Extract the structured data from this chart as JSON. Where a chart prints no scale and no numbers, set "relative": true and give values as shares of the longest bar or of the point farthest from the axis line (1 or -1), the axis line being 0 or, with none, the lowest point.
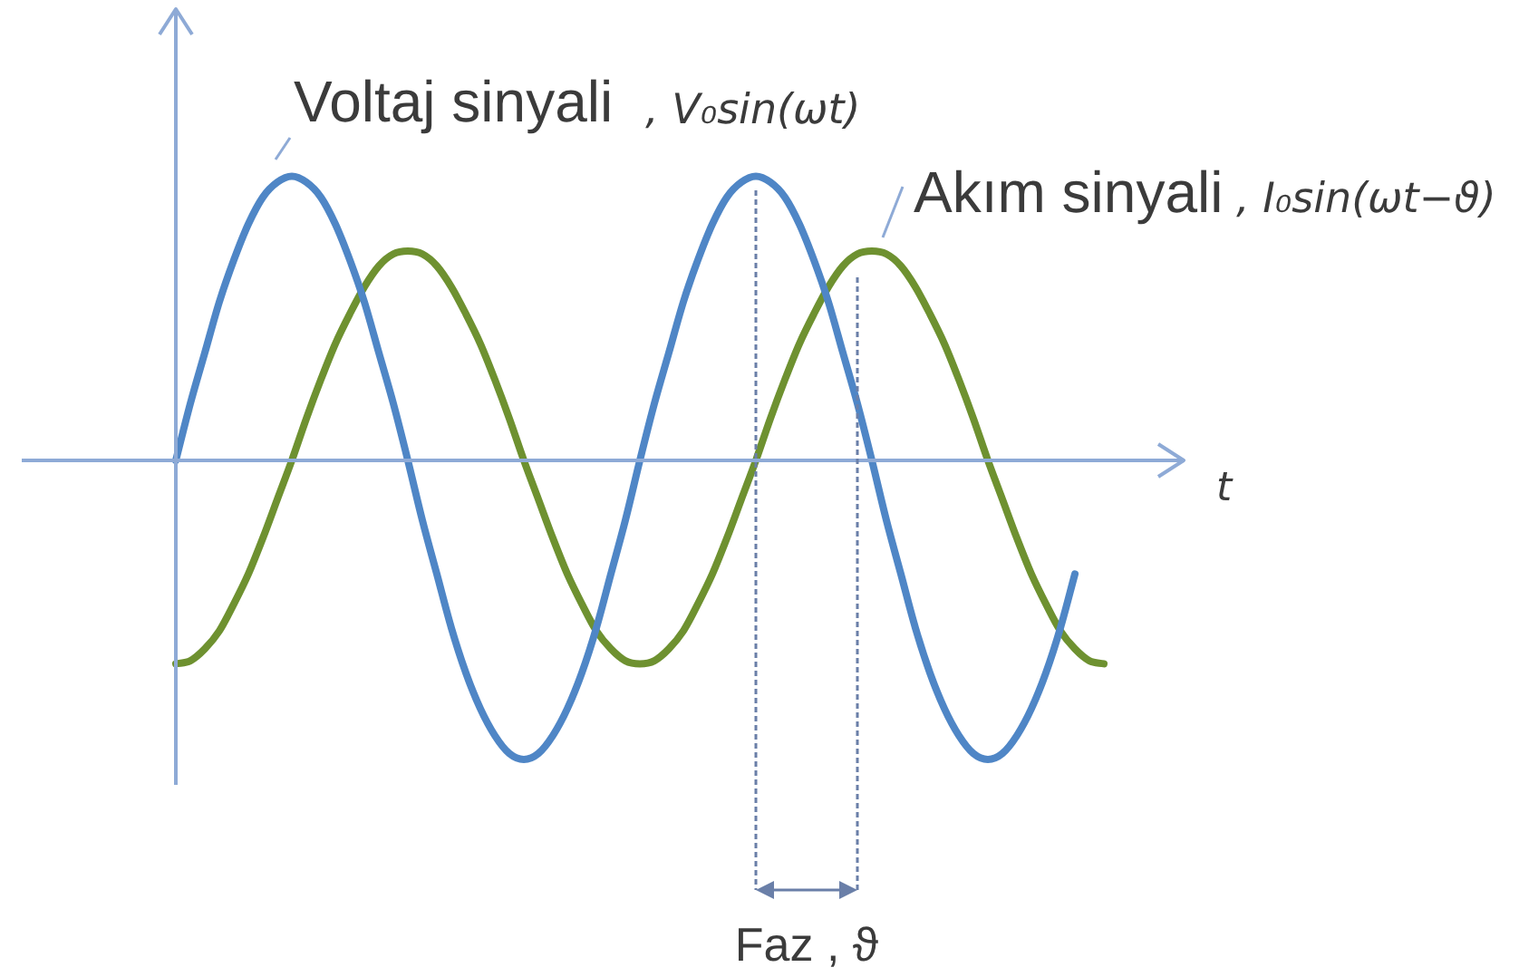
{
  "chart_data": {
    "type": "line",
    "relative": true,
    "xlabel": "t",
    "categories": [
      null,
      null,
      null,
      null,
      null,
      null,
      null,
      null,
      null,
      null,
      null,
      null,
      null,
      null,
      null,
      null,
      null,
      null,
      null,
      null,
      null,
      null,
      null,
      null,
      null,
      null,
      null,
      null,
      null,
      null,
      null,
      null,
      null,
      null,
      null,
      null,
      null,
      null,
      null,
      null,
      null,
      null,
      null,
      null,
      null,
      null,
      null,
      null,
      null,
      null,
      null,
      null,
      null,
      null,
      null,
      null,
      null,
      null,
      null,
      null,
      null,
      null,
      null,
      null,
      null
    ],
    "series": [
      {
        "name": "Voltaj sinyali",
        "color": "#4f86c6",
        "values": [
          0,
          0.19,
          0.36,
          0.53,
          0.67,
          0.79,
          0.88,
          0.93,
          0.95,
          0.93,
          0.88,
          0.79,
          0.67,
          0.53,
          0.36,
          0.19,
          0,
          -0.2,
          -0.38,
          -0.56,
          -0.71,
          -0.83,
          -0.92,
          -0.98,
          -1,
          -0.98,
          -0.92,
          -0.83,
          -0.71,
          -0.56,
          -0.38,
          -0.2,
          0,
          0.19,
          0.36,
          0.53,
          0.67,
          0.79,
          0.88,
          0.93,
          0.95,
          0.93,
          0.88,
          0.79,
          0.67,
          0.53,
          0.36,
          0.19,
          0,
          -0.2,
          -0.38,
          -0.56,
          -0.71,
          -0.83,
          -0.92,
          -0.98,
          -1,
          -0.98,
          -0.92,
          -0.83,
          -0.71,
          -0.56,
          -0.38,
          null,
          null
        ]
      },
      {
        "name": "Akım sinyali",
        "color": "#6e9130",
        "values": [
          -0.68,
          -0.67,
          -0.63,
          -0.57,
          -0.48,
          -0.38,
          -0.26,
          -0.13,
          0,
          0.14,
          0.27,
          0.39,
          0.49,
          0.58,
          0.65,
          0.69,
          0.7,
          0.69,
          0.65,
          0.58,
          0.49,
          0.39,
          0.27,
          0.14,
          0,
          -0.13,
          -0.26,
          -0.38,
          -0.48,
          -0.57,
          -0.63,
          -0.67,
          -0.68,
          -0.67,
          -0.63,
          -0.57,
          -0.48,
          -0.38,
          -0.26,
          -0.13,
          0,
          0.14,
          0.27,
          0.39,
          0.49,
          0.58,
          0.65,
          0.69,
          0.7,
          0.69,
          0.65,
          0.58,
          0.49,
          0.39,
          0.27,
          0.14,
          0,
          -0.13,
          -0.26,
          -0.38,
          -0.48,
          -0.57,
          -0.63,
          -0.67,
          -0.68
        ]
      }
    ],
    "ref_lines": [
      {
        "axis": "y",
        "value": 0,
        "color": "#8eaad6"
      }
    ],
    "annotations": [
      ", V₀sin(ωt)",
      ", I₀sin(ωt−ϑ)",
      "Faz , ϑ"
    ]
  }
}
